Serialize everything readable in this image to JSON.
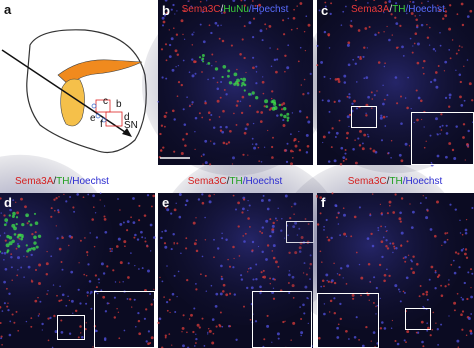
{
  "figure": {
    "panels": [
      {
        "label": "a",
        "annotations": [
          "c",
          "b",
          "d",
          "e",
          "f",
          "SN"
        ]
      },
      {
        "label": "b",
        "stain": [
          {
            "text": "Sema3C",
            "color": "#e83a3a"
          },
          {
            "text": "/",
            "color": "#e0e0e0"
          },
          {
            "text": "HuNu",
            "color": "#3ccf3c"
          },
          {
            "text": "/Hoechst",
            "color": "#5a6cff"
          }
        ]
      },
      {
        "label": "c",
        "stain": [
          {
            "text": "Sema3A",
            "color": "#e83a3a"
          },
          {
            "text": "/",
            "color": "#e0e0e0"
          },
          {
            "text": "TH",
            "color": "#3ccf3c"
          },
          {
            "text": "/Hoechst",
            "color": "#5a6cff"
          }
        ]
      },
      {
        "label": "d",
        "stain": [
          {
            "text": "Sema3A",
            "color": "#d42020"
          },
          {
            "text": "/",
            "color": "#222222"
          },
          {
            "text": "TH",
            "color": "#20a020"
          },
          {
            "text": "/Hoechst",
            "color": "#2a2ad0"
          }
        ]
      },
      {
        "label": "e",
        "stain": [
          {
            "text": "Sema3C",
            "color": "#d42020"
          },
          {
            "text": "/",
            "color": "#222222"
          },
          {
            "text": "TH",
            "color": "#20a020"
          },
          {
            "text": "/Hoechst",
            "color": "#2a2ad0"
          }
        ]
      },
      {
        "label": "f",
        "stain": [
          {
            "text": "Sema3C",
            "color": "#d42020"
          },
          {
            "text": "/",
            "color": "#222222"
          },
          {
            "text": "TH",
            "color": "#20a020"
          },
          {
            "text": "/Hoechst",
            "color": "#2a2ad0"
          }
        ]
      }
    ]
  }
}
